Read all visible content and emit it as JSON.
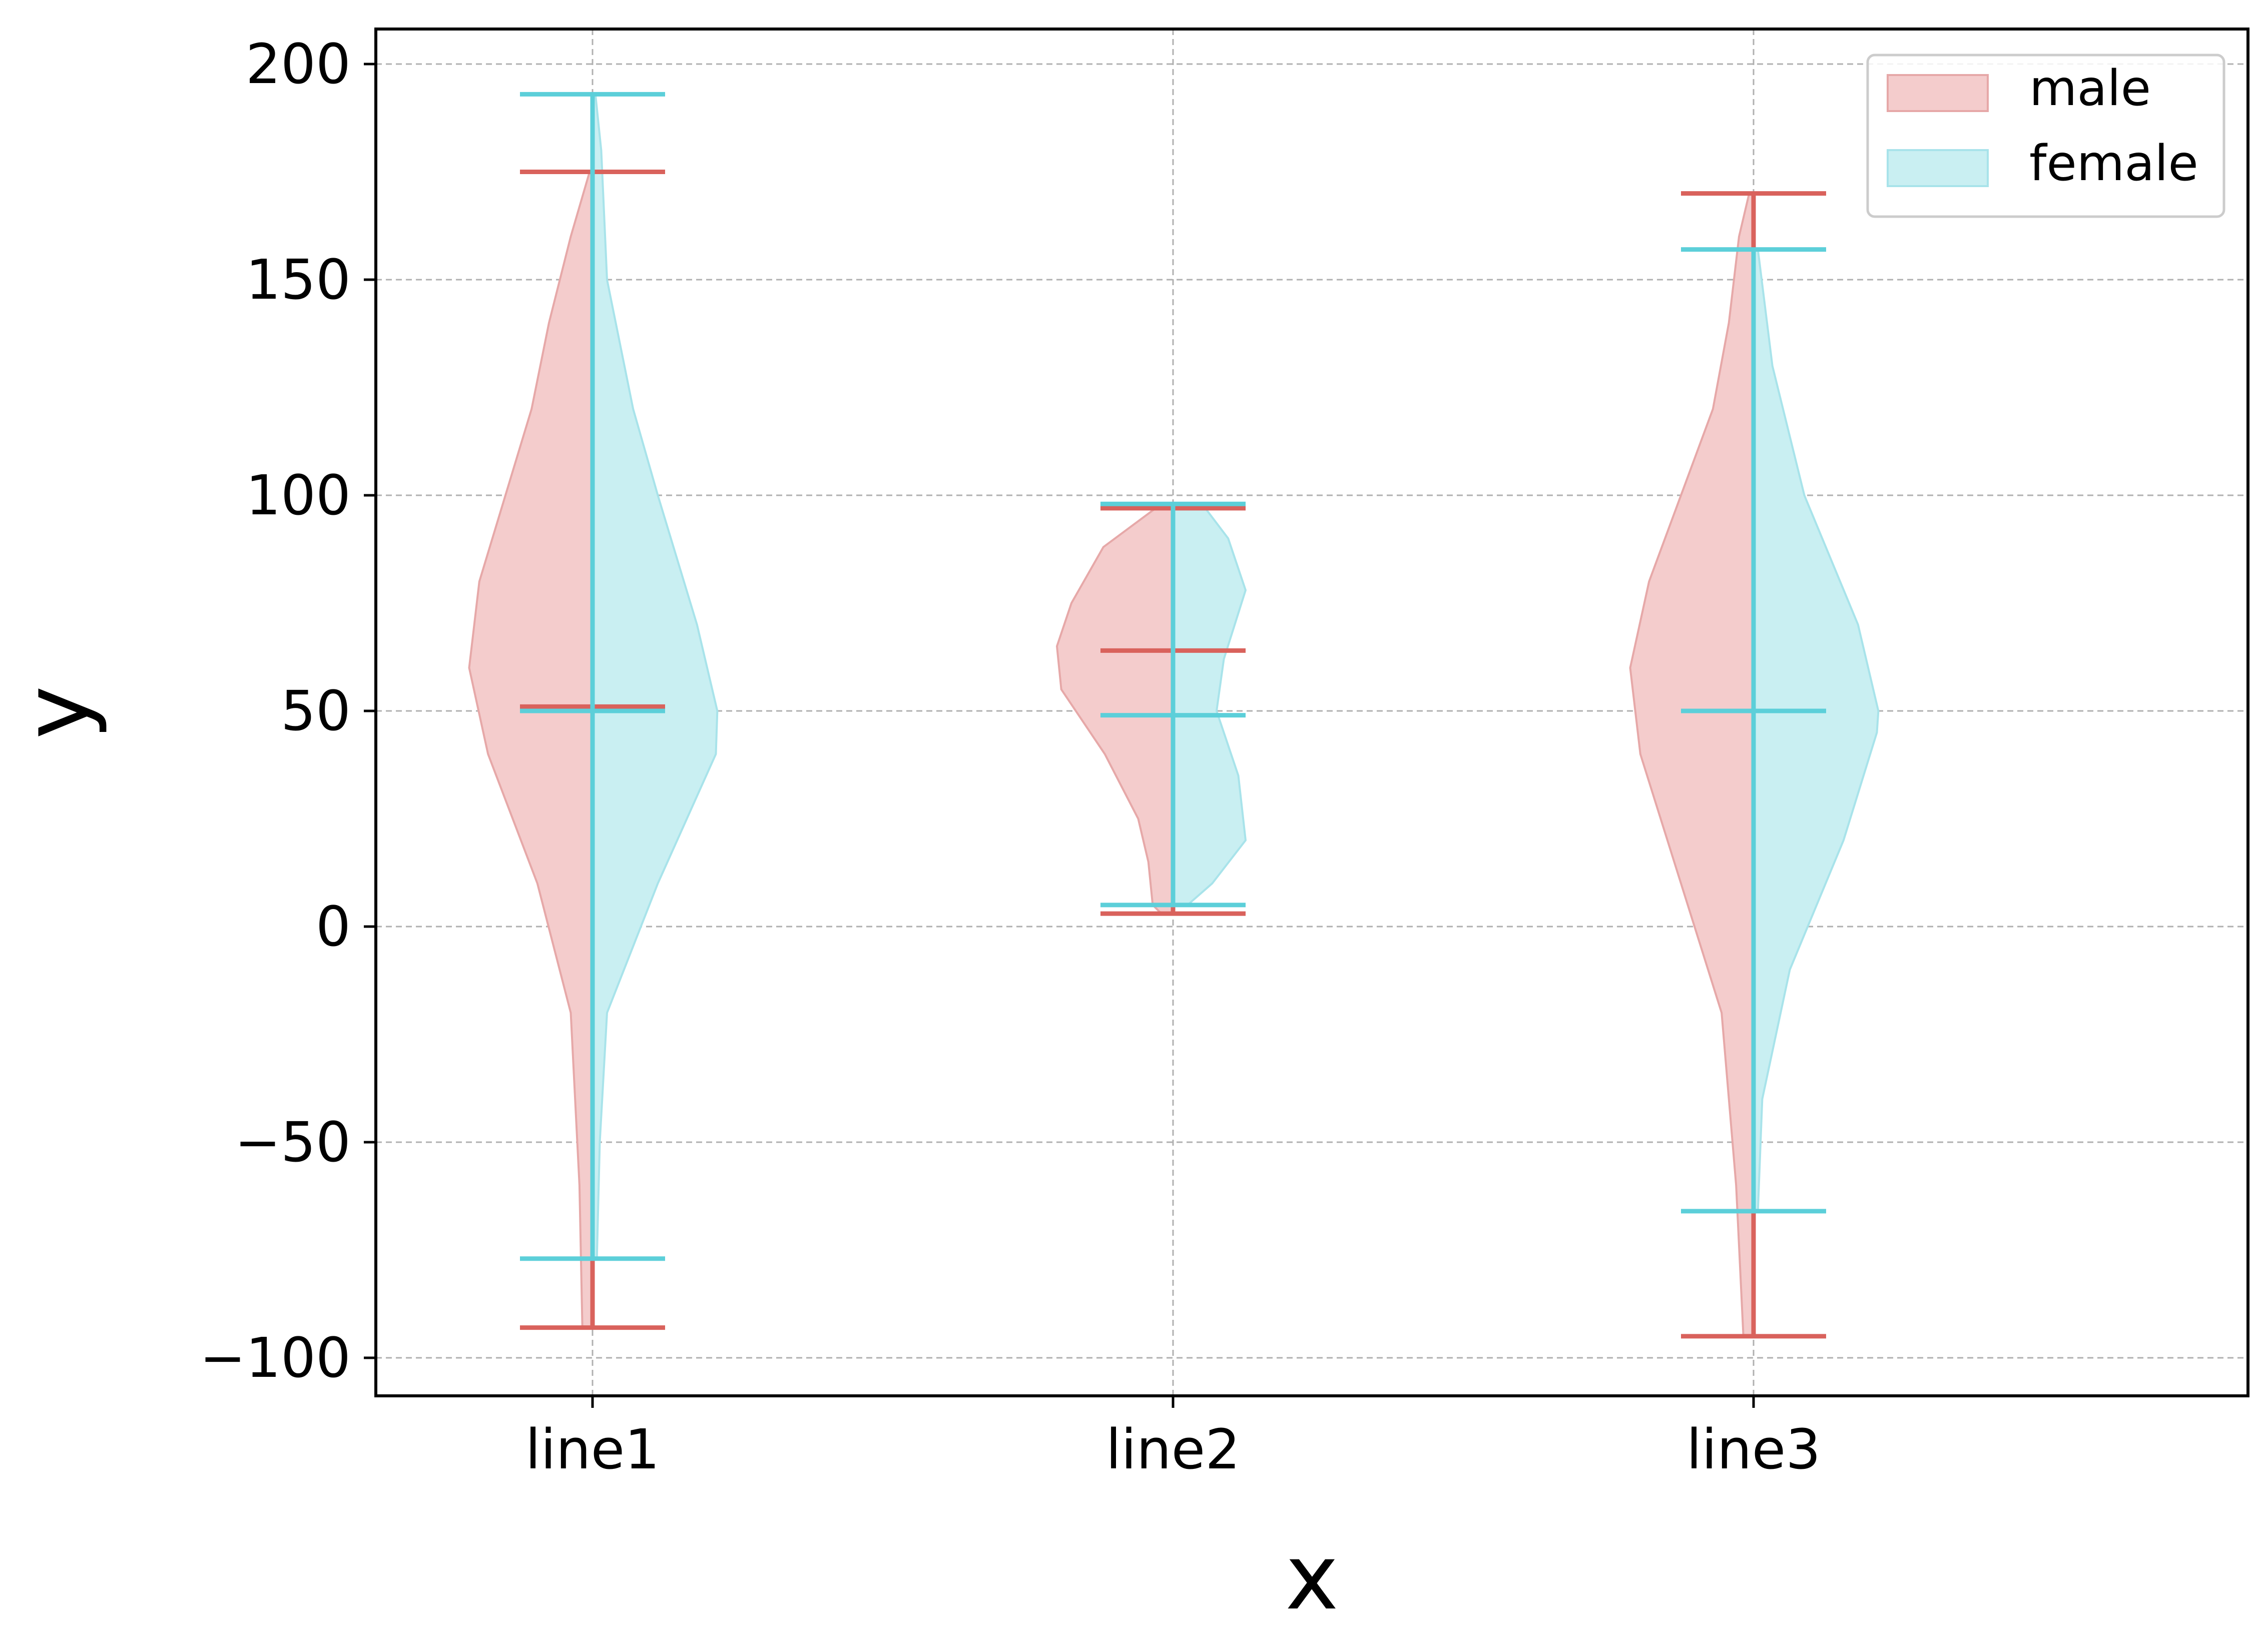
{
  "chart_data": {
    "type": "violin",
    "title": "",
    "xlabel": "x",
    "ylabel": "y",
    "categories": [
      "line1",
      "line2",
      "line3"
    ],
    "y_ticks": [
      200,
      150,
      100,
      50,
      0,
      -50,
      -100
    ],
    "y_tick_labels": [
      "200",
      "150",
      "100",
      "50",
      "0",
      "−50",
      "−100"
    ],
    "ylim": [
      -109,
      208
    ],
    "grid": true,
    "legend_position": "upper right",
    "colors": {
      "male_fill": "#f4cccc",
      "male_edge": "#e6a8a8",
      "male_bar": "#d9625c",
      "female_fill": "#c9eff2",
      "female_edge": "#a8e3ea",
      "female_bar": "#5ccfd9",
      "grid": "#b0b0b0"
    },
    "series": [
      {
        "name": "male",
        "side": "left",
        "violins": [
          {
            "category": "line1",
            "min": -93,
            "max": 175,
            "median": 51,
            "profile": [
              [
                -93,
                0.07
              ],
              [
                -60,
                0.09
              ],
              [
                -20,
                0.15
              ],
              [
                10,
                0.38
              ],
              [
                40,
                0.72
              ],
              [
                60,
                0.85
              ],
              [
                80,
                0.78
              ],
              [
                100,
                0.6
              ],
              [
                120,
                0.42
              ],
              [
                140,
                0.3
              ],
              [
                160,
                0.15
              ],
              [
                175,
                0.02
              ]
            ]
          },
          {
            "category": "line2",
            "min": 3,
            "max": 97,
            "median": 64,
            "profile": [
              [
                3,
                0.08
              ],
              [
                5,
                0.14
              ],
              [
                15,
                0.17
              ],
              [
                25,
                0.24
              ],
              [
                40,
                0.47
              ],
              [
                55,
                0.77
              ],
              [
                65,
                0.8
              ],
              [
                75,
                0.7
              ],
              [
                88,
                0.48
              ],
              [
                97,
                0.12
              ]
            ]
          },
          {
            "category": "line3",
            "min": -95,
            "max": 170,
            "median": 50,
            "profile": [
              [
                -95,
                0.07
              ],
              [
                -60,
                0.12
              ],
              [
                -20,
                0.22
              ],
              [
                10,
                0.5
              ],
              [
                40,
                0.78
              ],
              [
                60,
                0.85
              ],
              [
                80,
                0.72
              ],
              [
                100,
                0.5
              ],
              [
                120,
                0.28
              ],
              [
                140,
                0.17
              ],
              [
                160,
                0.1
              ],
              [
                170,
                0.03
              ]
            ]
          }
        ]
      },
      {
        "name": "female",
        "side": "right",
        "violins": [
          {
            "category": "line1",
            "min": -77,
            "max": 193,
            "median": 50,
            "profile": [
              [
                -77,
                0.03
              ],
              [
                -50,
                0.05
              ],
              [
                -20,
                0.1
              ],
              [
                10,
                0.45
              ],
              [
                40,
                0.85
              ],
              [
                50,
                0.86
              ],
              [
                70,
                0.72
              ],
              [
                100,
                0.45
              ],
              [
                120,
                0.28
              ],
              [
                150,
                0.1
              ],
              [
                180,
                0.06
              ],
              [
                193,
                0.02
              ]
            ]
          },
          {
            "category": "line2",
            "min": 5,
            "max": 98,
            "median": 49,
            "profile": [
              [
                5,
                0.1
              ],
              [
                10,
                0.27
              ],
              [
                20,
                0.5
              ],
              [
                35,
                0.45
              ],
              [
                50,
                0.3
              ],
              [
                62,
                0.35
              ],
              [
                78,
                0.5
              ],
              [
                90,
                0.38
              ],
              [
                98,
                0.2
              ]
            ]
          },
          {
            "category": "line3",
            "min": -66,
            "max": 157,
            "median": 50,
            "profile": [
              [
                -66,
                0.03
              ],
              [
                -40,
                0.06
              ],
              [
                -10,
                0.25
              ],
              [
                20,
                0.62
              ],
              [
                45,
                0.85
              ],
              [
                50,
                0.86
              ],
              [
                70,
                0.72
              ],
              [
                100,
                0.35
              ],
              [
                130,
                0.13
              ],
              [
                157,
                0.03
              ]
            ]
          }
        ]
      }
    ],
    "legend": [
      {
        "label": "male",
        "swatch": "male"
      },
      {
        "label": "female",
        "swatch": "female"
      }
    ]
  }
}
